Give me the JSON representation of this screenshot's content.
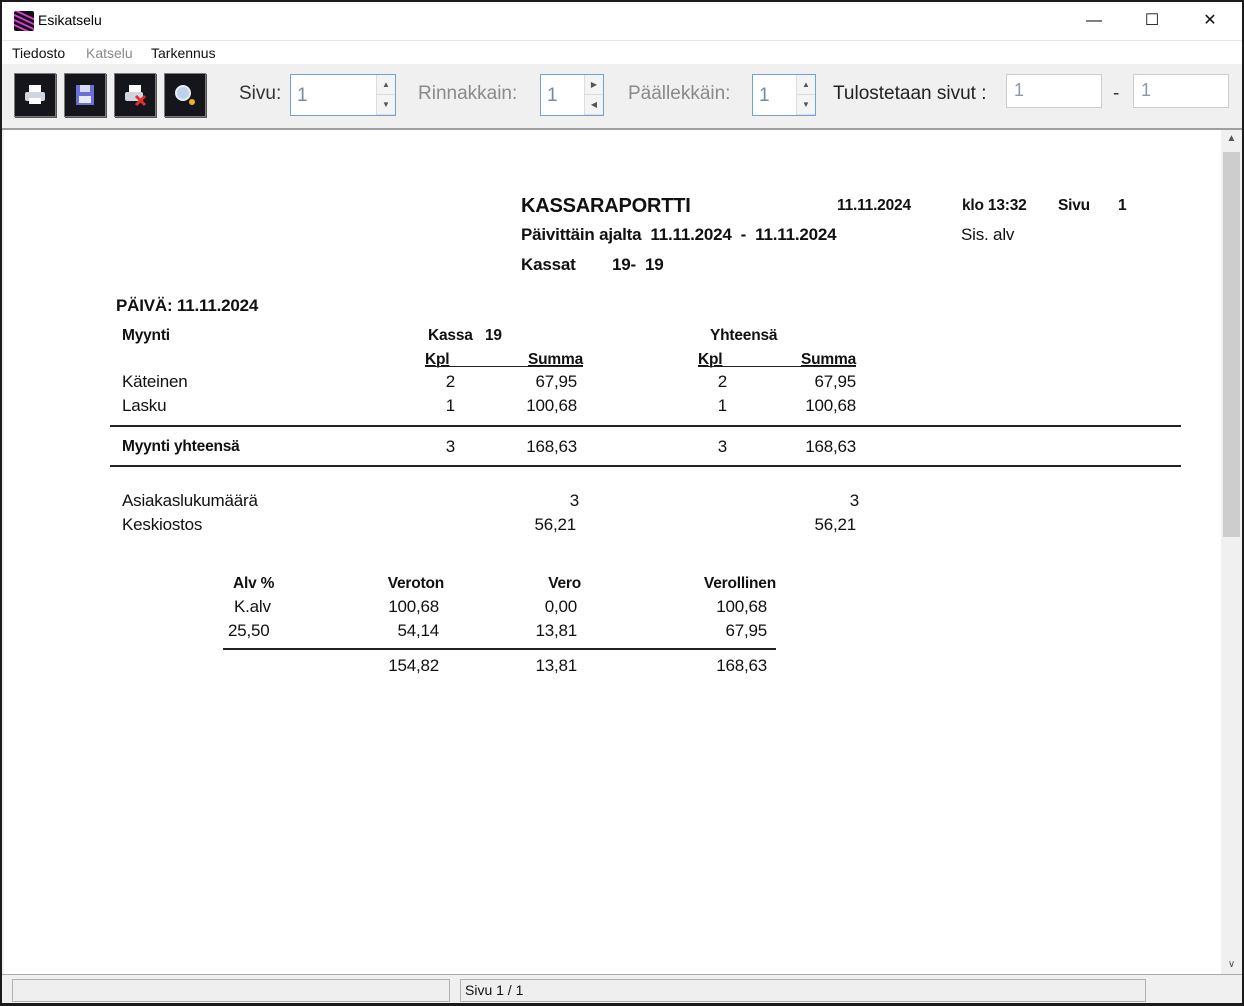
{
  "window": {
    "title": "Esikatselu",
    "controls": [
      "minimize",
      "maximize",
      "close"
    ]
  },
  "menu": [
    {
      "label": "Tiedosto",
      "enabled": true
    },
    {
      "label": "Katselu",
      "enabled": false
    },
    {
      "label": "Tarkennus",
      "enabled": true
    }
  ],
  "toolbar": {
    "buttons": [
      {
        "icon": "printer-icon"
      },
      {
        "icon": "save-disk-icon"
      },
      {
        "icon": "printer-cancel-icon"
      },
      {
        "icon": "zoom-magnifier-icon"
      }
    ],
    "page_label": "Sivu:",
    "page_value": "1",
    "side_label": "Rinnakkain:",
    "side_value": "1",
    "stack_label": "Päällekkäin:",
    "stack_value": "1",
    "print_label": "Tulostetaan sivut :",
    "print_from": "1",
    "print_sep": "-",
    "print_to": "1"
  },
  "report": {
    "title": "KASSARAPORTTI",
    "date": "11.11.2024",
    "time": "klo 13:32",
    "page_label": "Sivu",
    "page_no": "1",
    "period": "Päivittäin ajalta  11.11.2024  -  11.11.2024",
    "vat_mode": "Sis. alv",
    "registers_label": "Kassat",
    "registers": "19-  19",
    "day": "PÄIVÄ: 11.11.2024",
    "sales": {
      "heading": "Myynti",
      "register_col": "Kassa   19",
      "total_col": "Yhteensä",
      "kpl": "Kpl",
      "summa": "Summa",
      "rows": [
        {
          "label": "Käteinen",
          "kpl": "2",
          "summa": "67,95",
          "tot_kpl": "2",
          "tot_summa": "67,95"
        },
        {
          "label": "Lasku",
          "kpl": "1",
          "summa": "100,68",
          "tot_kpl": "1",
          "tot_summa": "100,68"
        }
      ],
      "total": {
        "label": "Myynti yhteensä",
        "kpl": "3",
        "summa": "168,63",
        "tot_kpl": "3",
        "tot_summa": "168,63"
      }
    },
    "customers": {
      "label": "Asiakaslukumäärä",
      "value": "3",
      "total": "3"
    },
    "average": {
      "label": "Keskiostos",
      "value": "56,21",
      "total": "56,21"
    },
    "vat": {
      "headers": [
        "Alv %",
        "Veroton",
        "Vero",
        "Verollinen"
      ],
      "rows": [
        [
          "K.alv",
          "100,68",
          "0,00",
          "100,68"
        ],
        [
          "25,50",
          "54,14",
          "13,81",
          "67,95"
        ]
      ],
      "totals": [
        "154,82",
        "13,81",
        "168,63"
      ]
    }
  },
  "statusbar": {
    "page_info": "Sivu 1 / 1"
  }
}
